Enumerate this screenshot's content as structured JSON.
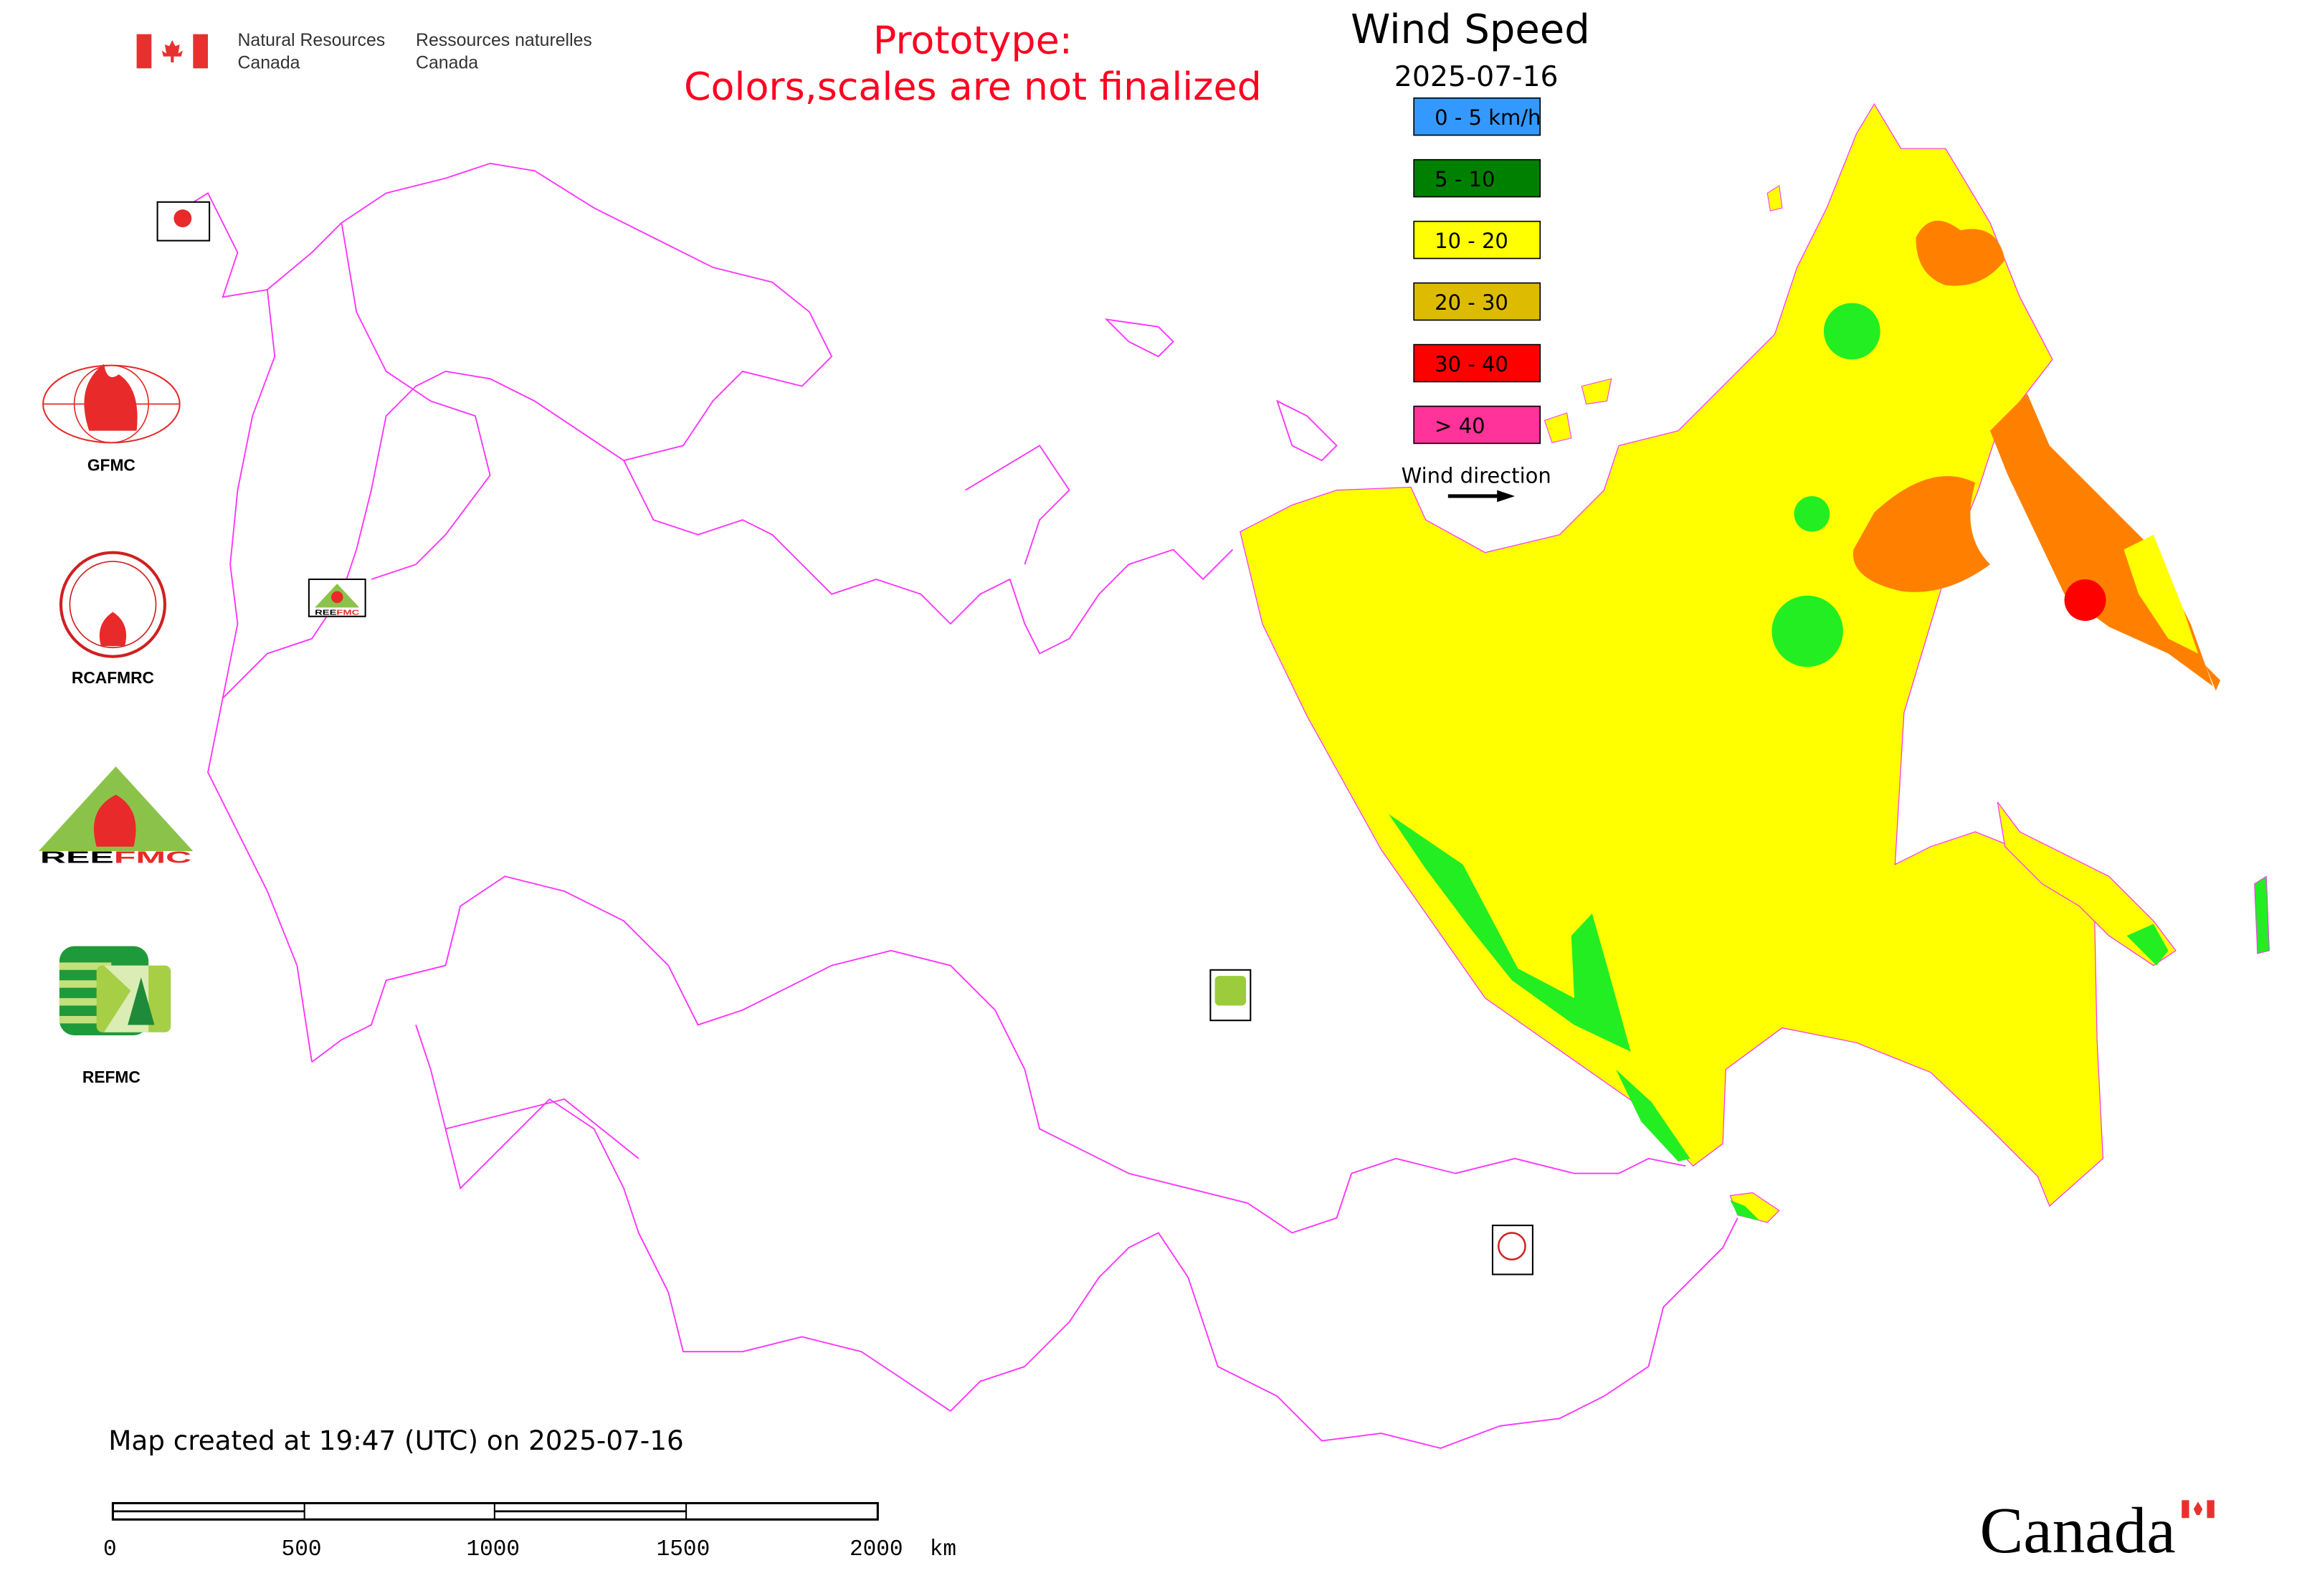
{
  "header": {
    "agency_en_line1": "Natural Resources",
    "agency_en_line2": "Canada",
    "agency_fr_line1": "Ressources naturelles",
    "agency_fr_line2": "Canada",
    "notice_line1": "Prototype:",
    "notice_line2": "Colors,scales are not finalized",
    "notice_color": "#ff0022"
  },
  "legend": {
    "title": "Wind Speed",
    "date": "2025-07-16",
    "items": [
      {
        "label": "0 - 5 km/h",
        "color": "#3399ff"
      },
      {
        "label": "5 - 10",
        "color": "#008000"
      },
      {
        "label": "10 - 20",
        "color": "#ffff00"
      },
      {
        "label": "20 - 30",
        "color": "#ddbb00"
      },
      {
        "label": "30 - 40",
        "color": "#ff0000"
      },
      {
        "label": "> 40",
        "color": "#ff3399"
      }
    ],
    "direction_label": "Wind direction",
    "direction_icon": "arrow-right-icon"
  },
  "side_logos": [
    {
      "name": "GFMC",
      "label": "GFMC"
    },
    {
      "name": "RCAFMRC",
      "label": "RCAFMRC"
    },
    {
      "name": "REEFMC",
      "label": "REEFMC"
    },
    {
      "name": "REFMC",
      "label": "REFMC"
    }
  ],
  "map": {
    "border_color": "#ff33ff",
    "wind_colors": {
      "calm_green": "#22ee22",
      "moderate": "#ffff00",
      "strong": "#ff8000",
      "very_strong": "#ff0000"
    }
  },
  "footer": {
    "created": "Map created at 19:47 (UTC) on 2025-07-16",
    "scalebar_labels": [
      "0",
      "500",
      "1000",
      "1500",
      "2000  km"
    ],
    "wordmark": "Canada"
  }
}
